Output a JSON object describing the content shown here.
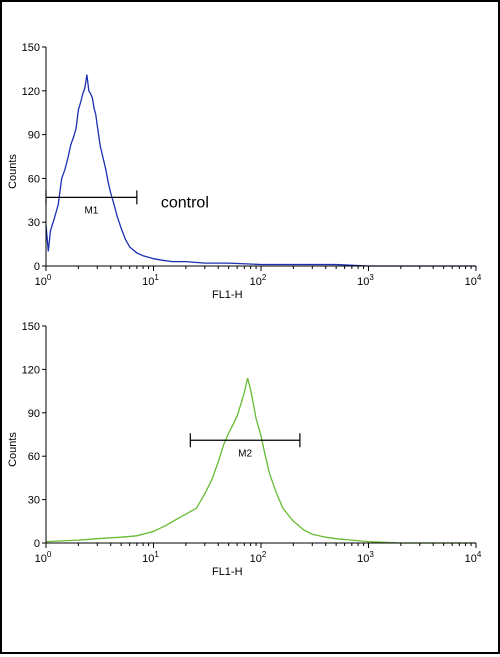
{
  "colors": {
    "control": "#1c2fb0",
    "sample": "#66bb33",
    "axis": "#000000"
  },
  "chart_data": [
    {
      "type": "line",
      "xlabel": "FL1-H",
      "ylabel": "Counts",
      "xscale": "log",
      "xlim": [
        1,
        10000
      ],
      "ylim": [
        0,
        150
      ],
      "yticks": [
        "0",
        "30",
        "60",
        "90",
        "120",
        "150"
      ],
      "xticks": [
        {
          "base": "10",
          "exp": "0"
        },
        {
          "base": "10",
          "exp": "1"
        },
        {
          "base": "10",
          "exp": "2"
        },
        {
          "base": "10",
          "exp": "3"
        },
        {
          "base": "10",
          "exp": "4"
        }
      ],
      "annotation": "control",
      "marker": {
        "label": "M1",
        "x_start": 1.0,
        "x_end": 7.0,
        "y": 47
      },
      "series": [
        {
          "color": "#1c2fb0",
          "x": [
            1.0,
            1.05,
            1.1,
            1.2,
            1.3,
            1.4,
            1.5,
            1.6,
            1.7,
            1.8,
            1.9,
            2.0,
            2.1,
            2.2,
            2.3,
            2.4,
            2.5,
            2.6,
            2.7,
            2.8,
            2.9,
            3.0,
            3.2,
            3.4,
            3.6,
            3.8,
            4.0,
            4.3,
            4.6,
            5.0,
            5.5,
            6.0,
            7.0,
            8.0,
            10.0,
            12.0,
            15.0,
            20.0,
            30.0,
            50.0,
            100.0,
            200.0,
            500.0,
            1000.0,
            3000.0,
            10000.0
          ],
          "y": [
            28,
            10,
            24,
            33,
            42,
            60,
            66,
            74,
            83,
            88,
            94,
            107,
            112,
            118,
            122,
            131,
            120,
            118,
            115,
            108,
            104,
            96,
            82,
            74,
            66,
            57,
            50,
            42,
            34,
            26,
            18,
            13,
            9,
            7,
            5,
            4,
            3,
            3,
            2,
            2,
            1,
            1,
            1,
            0,
            0,
            0
          ]
        }
      ]
    },
    {
      "type": "line",
      "xlabel": "FL1-H",
      "ylabel": "Counts",
      "xscale": "log",
      "xlim": [
        1,
        10000
      ],
      "ylim": [
        0,
        150
      ],
      "yticks": [
        "0",
        "30",
        "60",
        "90",
        "120",
        "150"
      ],
      "xticks": [
        {
          "base": "10",
          "exp": "0"
        },
        {
          "base": "10",
          "exp": "1"
        },
        {
          "base": "10",
          "exp": "2"
        },
        {
          "base": "10",
          "exp": "3"
        },
        {
          "base": "10",
          "exp": "4"
        }
      ],
      "marker": {
        "label": "M2",
        "x_start": 22,
        "x_end": 230,
        "y": 71
      },
      "series": [
        {
          "color": "#66bb33",
          "x": [
            1.0,
            2.0,
            3.0,
            5.0,
            7.0,
            10.0,
            13.0,
            16.0,
            20.0,
            25.0,
            30.0,
            35.0,
            40.0,
            45.0,
            50.0,
            55.0,
            60.0,
            65.0,
            70.0,
            75.0,
            80.0,
            85.0,
            90.0,
            100.0,
            110.0,
            120.0,
            140.0,
            160.0,
            200.0,
            250.0,
            300.0,
            400.0,
            500.0,
            700.0,
            1000.0,
            2000.0,
            5000.0,
            10000.0
          ],
          "y": [
            1,
            2,
            3,
            4,
            5,
            8,
            12,
            16,
            20,
            24,
            34,
            44,
            56,
            68,
            76,
            82,
            88,
            96,
            104,
            114,
            106,
            96,
            86,
            74,
            60,
            48,
            34,
            24,
            15,
            9,
            6,
            4,
            3,
            2,
            1,
            0,
            0,
            0
          ]
        }
      ]
    }
  ]
}
